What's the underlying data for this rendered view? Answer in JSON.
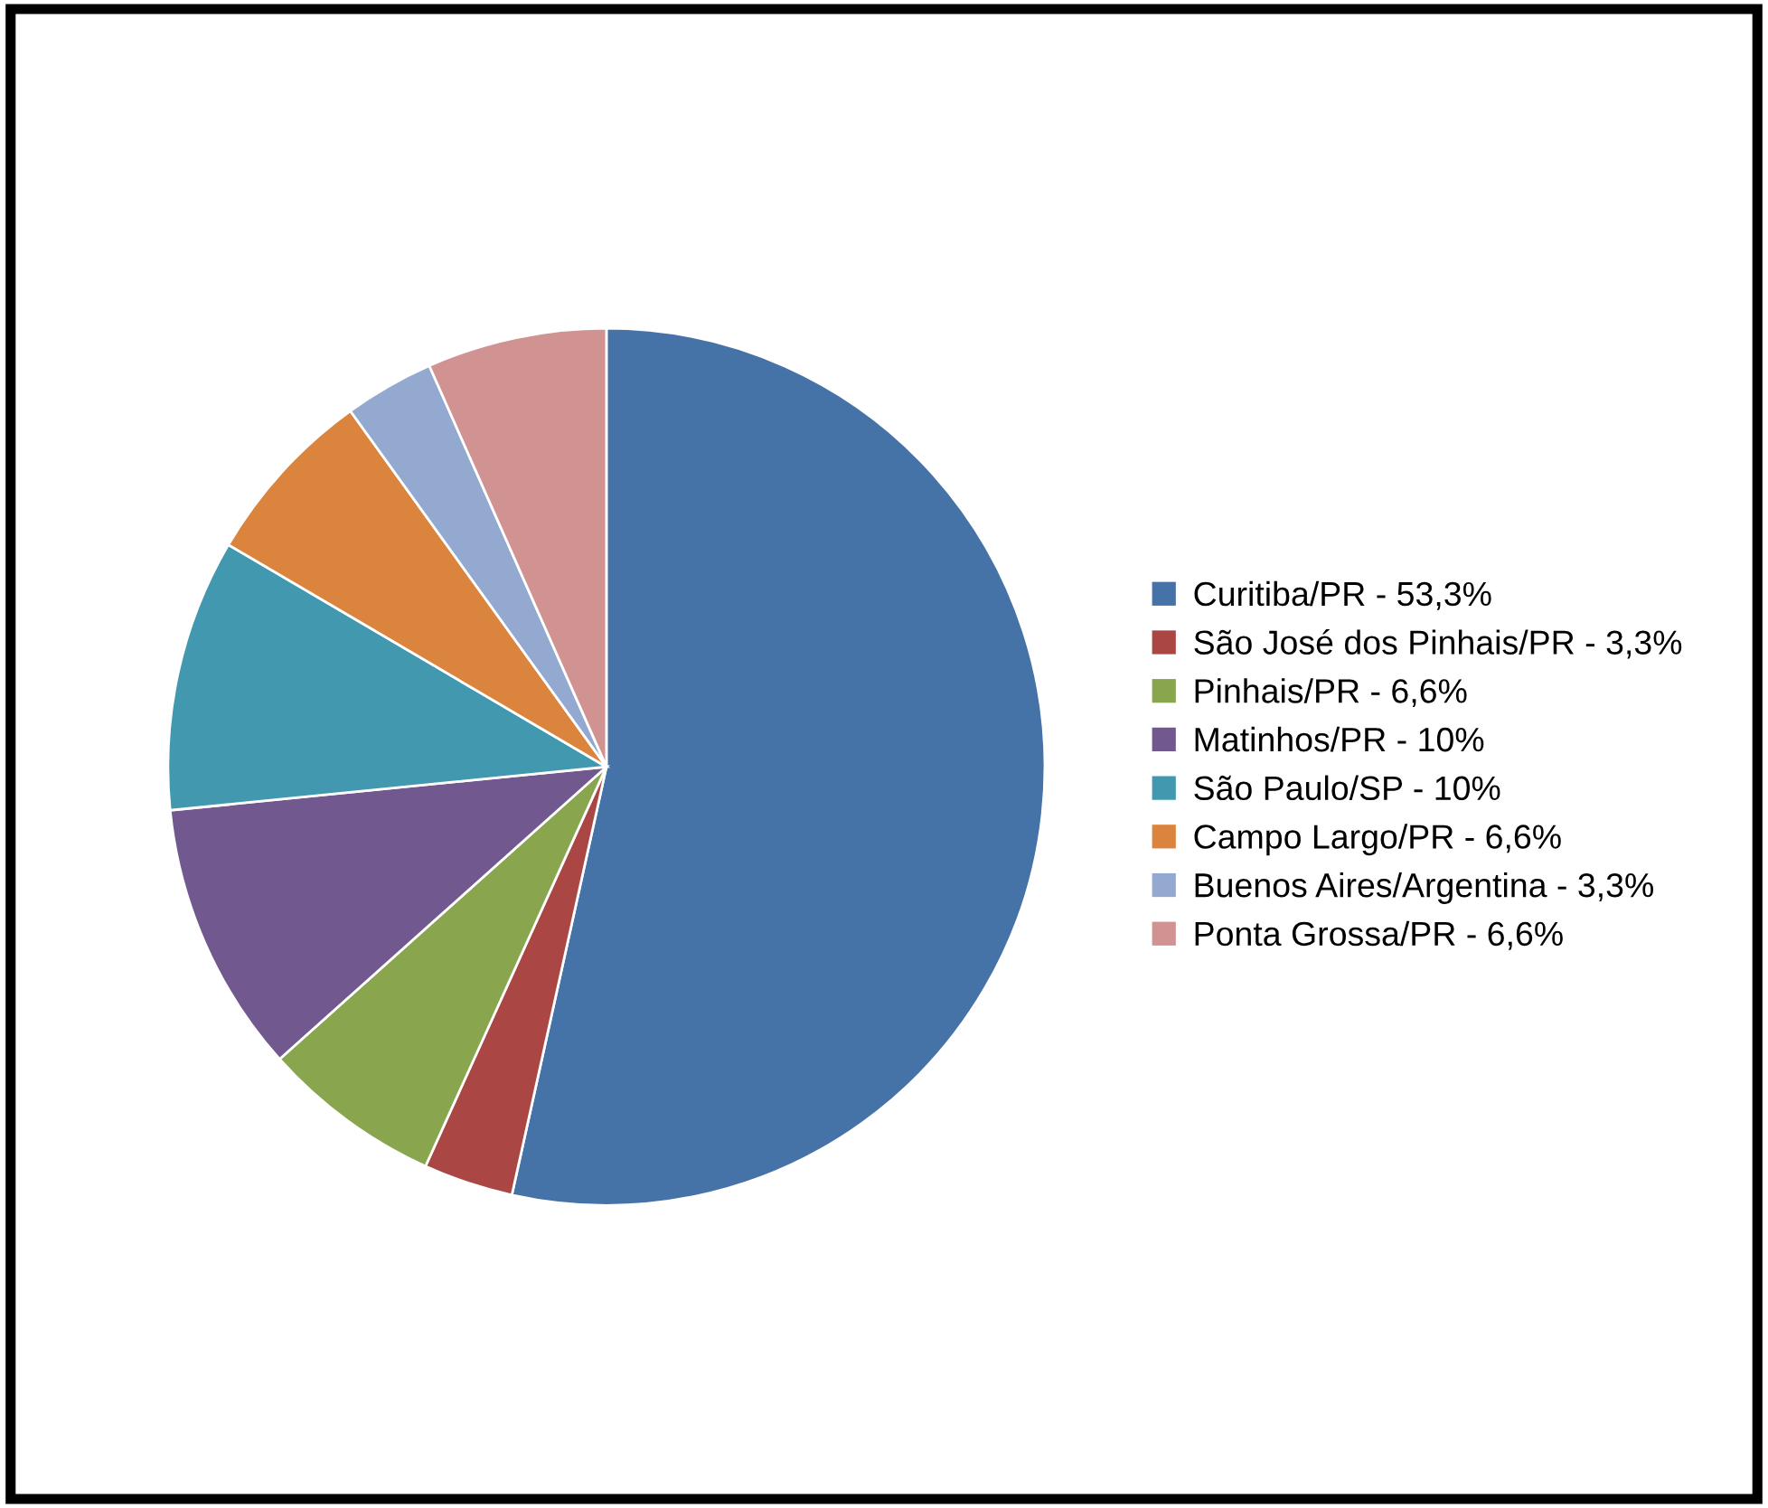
{
  "chart_data": {
    "type": "pie",
    "categories": [
      "Curitiba/PR - 53,3%",
      "São José dos Pinhais/PR - 3,3%",
      "Pinhais/PR - 6,6%",
      "Matinhos/PR - 10%",
      "São Paulo/SP - 10%",
      "Campo Largo/PR - 6,6%",
      "Buenos Aires/Argentina - 3,3%",
      "Ponta Grossa/PR - 6,6%"
    ],
    "values": [
      53.3,
      3.3,
      6.6,
      10,
      10,
      6.6,
      3.3,
      6.6
    ],
    "colors": [
      "#4572a7",
      "#aa4643",
      "#89a54e",
      "#71588f",
      "#4198af",
      "#db843d",
      "#93a9cf",
      "#d19392"
    ],
    "legend": "right"
  }
}
